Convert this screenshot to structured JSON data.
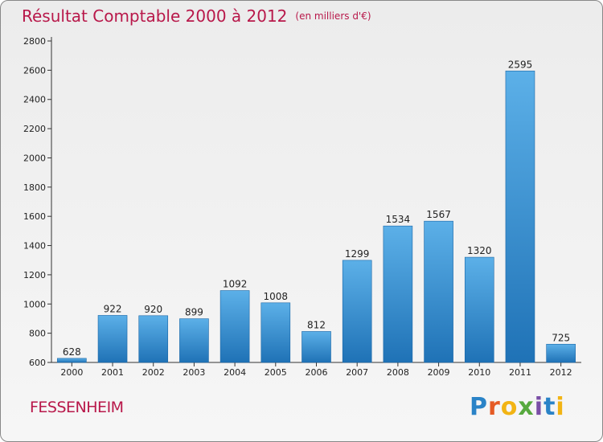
{
  "header": {
    "title": "Résultat Comptable 2000 à 2012",
    "unit": "(en milliers d'€)"
  },
  "commune": "FESSENHEIM",
  "logo": {
    "letters": [
      "P",
      "r",
      "o",
      "x",
      "i",
      "t",
      "i"
    ],
    "text": "Proxiti"
  },
  "colors": {
    "title": "#b8184a",
    "bar_light": "#5aaee6",
    "bar_dark": "#1f74b8",
    "axis": "#333333"
  },
  "chart_data": {
    "type": "bar",
    "categories": [
      "2000",
      "2001",
      "2002",
      "2003",
      "2004",
      "2005",
      "2006",
      "2007",
      "2008",
      "2009",
      "2010",
      "2011",
      "2012"
    ],
    "values": [
      628,
      922,
      920,
      899,
      1092,
      1008,
      812,
      1299,
      1534,
      1567,
      1320,
      2595,
      725
    ],
    "title": "Résultat Comptable 2000 à 2012",
    "subtitle": "(en milliers d'€)",
    "xlabel": "",
    "ylabel": "",
    "ylim": [
      600,
      2800
    ],
    "yticks": [
      600,
      800,
      1000,
      1200,
      1400,
      1600,
      1800,
      2000,
      2200,
      2400,
      2600,
      2800
    ],
    "grid": false,
    "data_labels": true
  }
}
